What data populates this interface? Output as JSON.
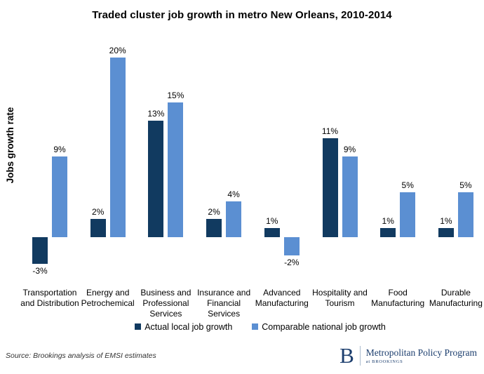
{
  "chart_data": {
    "type": "bar",
    "title": "Traded cluster job growth in metro New Orleans, 2010-2014",
    "xlabel": "",
    "ylabel": "Jobs growth rate",
    "categories": [
      "Transportation and Distribution",
      "Energy and Petrochemical",
      "Business and Professional Services",
      "Insurance and Financial Services",
      "Advanced Manufacturing",
      "Hospitality and Tourism",
      "Food Manufacturing",
      "Durable Manufacturing"
    ],
    "series": [
      {
        "name": "Actual local job growth",
        "color": "#113A60",
        "values": [
          -3,
          2,
          13,
          2,
          1,
          11,
          1,
          1
        ]
      },
      {
        "name": "Comparable national job growth",
        "color": "#5B8FD2",
        "values": [
          9,
          20,
          15,
          4,
          -2,
          9,
          5,
          5
        ]
      }
    ],
    "value_suffix": "%",
    "ylim": [
      -4,
      21
    ],
    "grid": false,
    "axis_lines": false,
    "legend_position": "bottom"
  },
  "footer": {
    "source": "Source: Brookings analysis of EMSI estimates",
    "logo": {
      "letter": "B",
      "title": "Metropolitan Policy Program",
      "subtitle": "at BROOKINGS",
      "color": "#1c3e6e"
    }
  }
}
